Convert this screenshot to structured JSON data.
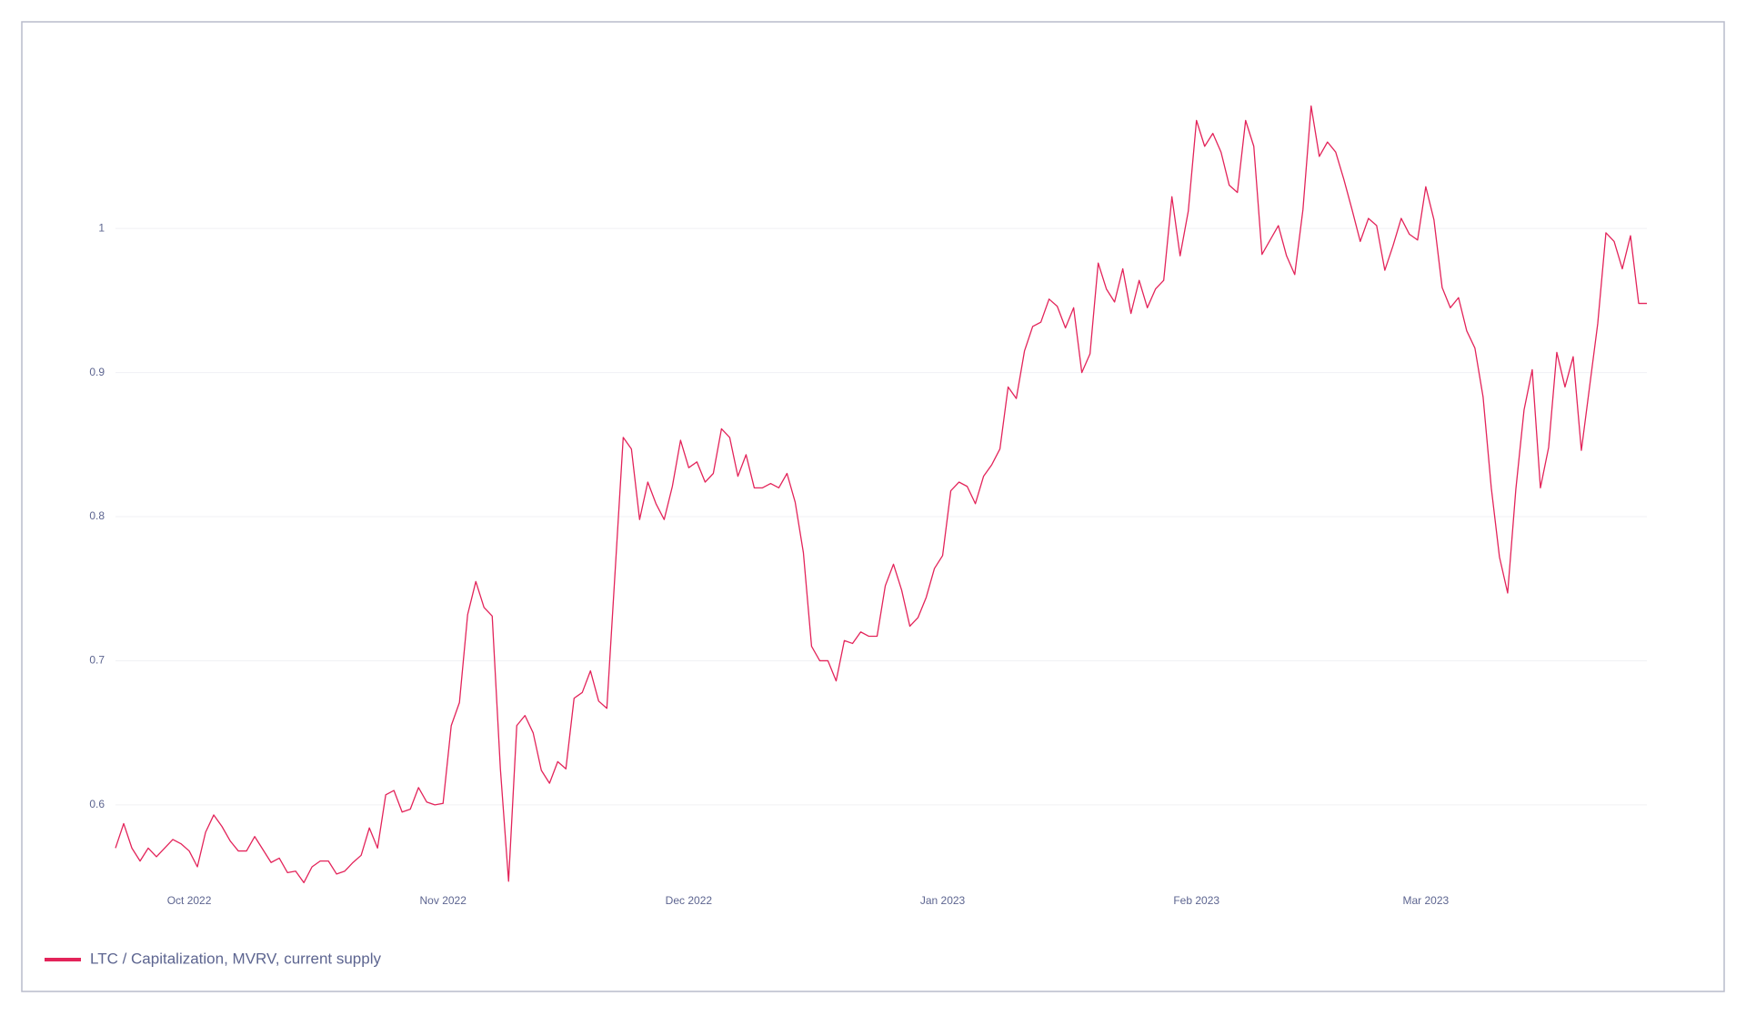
{
  "chart_data": {
    "type": "line",
    "series": [
      {
        "name": "LTC / Capitalization, MVRV, current supply",
        "color": "#e3245a",
        "values": [
          0.57,
          0.587,
          0.57,
          0.561,
          0.57,
          0.564,
          0.57,
          0.576,
          0.573,
          0.568,
          0.557,
          0.581,
          0.593,
          0.585,
          0.575,
          0.568,
          0.568,
          0.578,
          0.569,
          0.56,
          0.563,
          0.553,
          0.554,
          0.546,
          0.557,
          0.561,
          0.561,
          0.552,
          0.554,
          0.56,
          0.565,
          0.584,
          0.57,
          0.607,
          0.61,
          0.595,
          0.597,
          0.612,
          0.602,
          0.6,
          0.601,
          0.655,
          0.671,
          0.732,
          0.755,
          0.737,
          0.731,
          0.625,
          0.547,
          0.655,
          0.662,
          0.65,
          0.624,
          0.615,
          0.63,
          0.625,
          0.674,
          0.678,
          0.693,
          0.672,
          0.667,
          0.761,
          0.855,
          0.847,
          0.798,
          0.824,
          0.809,
          0.798,
          0.821,
          0.853,
          0.834,
          0.838,
          0.824,
          0.83,
          0.861,
          0.855,
          0.828,
          0.843,
          0.82,
          0.82,
          0.823,
          0.82,
          0.83,
          0.81,
          0.775,
          0.71,
          0.7,
          0.7,
          0.686,
          0.714,
          0.712,
          0.72,
          0.717,
          0.717,
          0.752,
          0.767,
          0.749,
          0.724,
          0.73,
          0.744,
          0.764,
          0.773,
          0.818,
          0.824,
          0.821,
          0.809,
          0.828,
          0.836,
          0.847,
          0.89,
          0.882,
          0.915,
          0.932,
          0.935,
          0.951,
          0.946,
          0.931,
          0.945,
          0.9,
          0.913,
          0.976,
          0.958,
          0.949,
          0.972,
          0.941,
          0.964,
          0.945,
          0.958,
          0.964,
          1.022,
          0.981,
          1.012,
          1.075,
          1.057,
          1.066,
          1.053,
          1.03,
          1.025,
          1.075,
          1.057,
          0.982,
          0.992,
          1.002,
          0.981,
          0.968,
          1.013,
          1.085,
          1.05,
          1.06,
          1.053,
          1.034,
          1.013,
          0.991,
          1.007,
          1.002,
          0.971,
          0.988,
          1.007,
          0.996,
          0.992,
          1.029,
          1.006,
          0.959,
          0.945,
          0.952,
          0.929,
          0.917,
          0.883,
          0.82,
          0.772,
          0.747,
          0.819,
          0.874,
          0.902,
          0.82,
          0.848,
          0.914,
          0.89,
          0.911,
          0.846,
          0.89,
          0.934,
          0.997,
          0.991,
          0.972,
          0.995,
          0.948,
          0.948
        ]
      }
    ],
    "xlim": [
      0,
      187
    ],
    "xticks": [
      {
        "value": 9,
        "label": "Oct 2022"
      },
      {
        "value": 40,
        "label": "Nov 2022"
      },
      {
        "value": 70,
        "label": "Dec 2022"
      },
      {
        "value": 101,
        "label": "Jan 2023"
      },
      {
        "value": 132,
        "label": "Feb 2023"
      },
      {
        "value": 160,
        "label": "Mar 2023"
      }
    ],
    "ylim": [
      0.545,
      1.115
    ],
    "yticks": [
      0.6,
      0.7,
      0.8,
      0.9,
      1
    ],
    "grid": true,
    "legend": "bottom-left"
  }
}
